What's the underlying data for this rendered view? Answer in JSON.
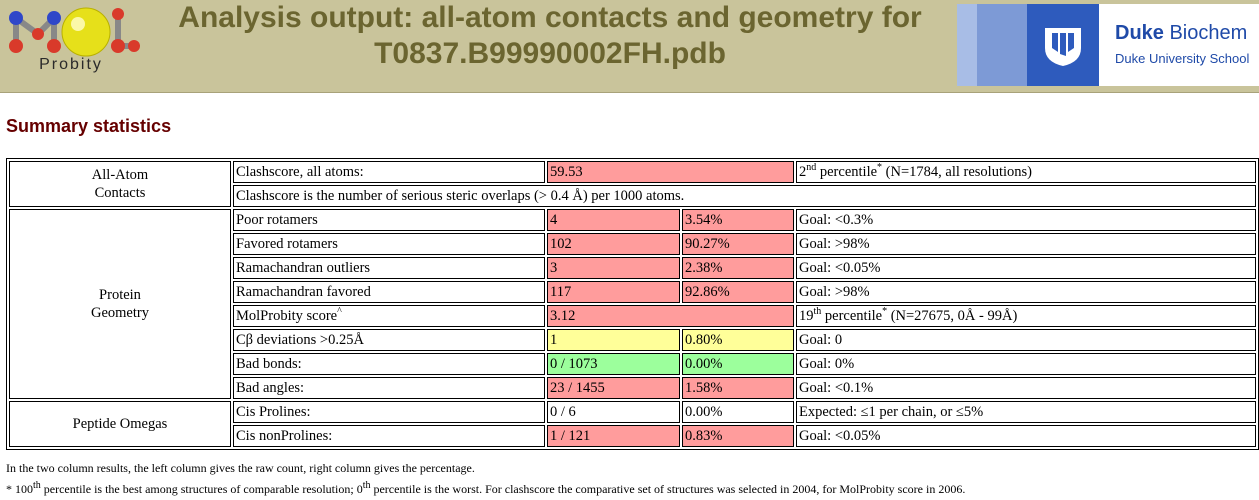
{
  "header": {
    "logo_text": "Probity",
    "title_line1": "Analysis output: all-atom contacts and geometry for",
    "title_line2": "T0837.B99990002FH.pdb",
    "duke_name_bold": "Duke",
    "duke_name_rest": " Biochem",
    "duke_sub": "Duke University School"
  },
  "section_title": "Summary statistics",
  "contacts": {
    "category_line1": "All-Atom",
    "category_line2": "Contacts",
    "clashscore_label": "Clashscore, all atoms:",
    "clashscore_value": "59.53",
    "clashscore_percentile_num": "2",
    "clashscore_percentile_sup": "nd",
    "clashscore_percentile_word": " percentile",
    "clashscore_percentile_star": "*",
    "clashscore_percentile_extra": " (N=1784, all resolutions)",
    "clashscore_note": "Clashscore is the number of serious steric overlaps (> 0.4 Å) per 1000 atoms."
  },
  "geometry": {
    "category_line1": "Protein",
    "category_line2": "Geometry",
    "rows": [
      {
        "label": "Poor rotamers",
        "v1": "4",
        "v2": "3.54%",
        "goal": "Goal: <0.3%",
        "color": "red"
      },
      {
        "label": "Favored rotamers",
        "v1": "102",
        "v2": "90.27%",
        "goal": "Goal: >98%",
        "color": "red"
      },
      {
        "label": "Ramachandran outliers",
        "v1": "3",
        "v2": "2.38%",
        "goal": "Goal: <0.05%",
        "color": "red"
      },
      {
        "label": "Ramachandran favored",
        "v1": "117",
        "v2": "92.86%",
        "goal": "Goal: >98%",
        "color": "red"
      }
    ],
    "molprobity_label": "MolProbity score",
    "molprobity_caret": "^",
    "molprobity_value": "3.12",
    "molprobity_percentile_num": "19",
    "molprobity_percentile_sup": "th",
    "molprobity_percentile_word": " percentile",
    "molprobity_percentile_star": "*",
    "molprobity_percentile_extra": " (N=27675, 0Å - 99Å)",
    "rows2": [
      {
        "label": "Cβ deviations >0.25Å",
        "v1": "1",
        "v2": "0.80%",
        "goal": "Goal: 0",
        "color": "yellow"
      },
      {
        "label": "Bad bonds:",
        "v1": "0 / 1073",
        "v2": "0.00%",
        "goal": "Goal: 0%",
        "color": "green"
      },
      {
        "label": "Bad angles:",
        "v1": "23 / 1455",
        "v2": "1.58%",
        "goal": "Goal: <0.1%",
        "color": "red"
      }
    ]
  },
  "omegas": {
    "category": "Peptide Omegas",
    "cis_prolines_label": "Cis Prolines:",
    "cis_prolines_v1": "0 / 6",
    "cis_prolines_v2": "0.00%",
    "cis_prolines_goal": "Expected: ≤1 per chain, or ≤5%",
    "cis_nonprolines_label": "Cis nonProlines:",
    "cis_nonprolines_v1": "1 / 121",
    "cis_nonprolines_v2": "0.83%",
    "cis_nonprolines_goal": "Goal: <0.05%"
  },
  "notes": {
    "two_column": "In the two column results, the left column gives the raw count, right column gives the percentage.",
    "star": "* ",
    "p100_num": "100",
    "p100_sup": "th",
    "p100_text": " percentile is the best among structures of comparable resolution; ",
    "p0_num": "0",
    "p0_sup": "th",
    "p0_text": " percentile is the worst. For clashscore the comparative set of structures was selected in 2004, for MolProbity score in 2006."
  },
  "colors": {
    "header_bg": "#c9c49b",
    "title": "#6b6530",
    "section_title": "#660000",
    "bad": "#ff9c9c",
    "warn": "#ffff99",
    "good": "#9cff9c",
    "duke_blue": "#1f4aa8"
  }
}
